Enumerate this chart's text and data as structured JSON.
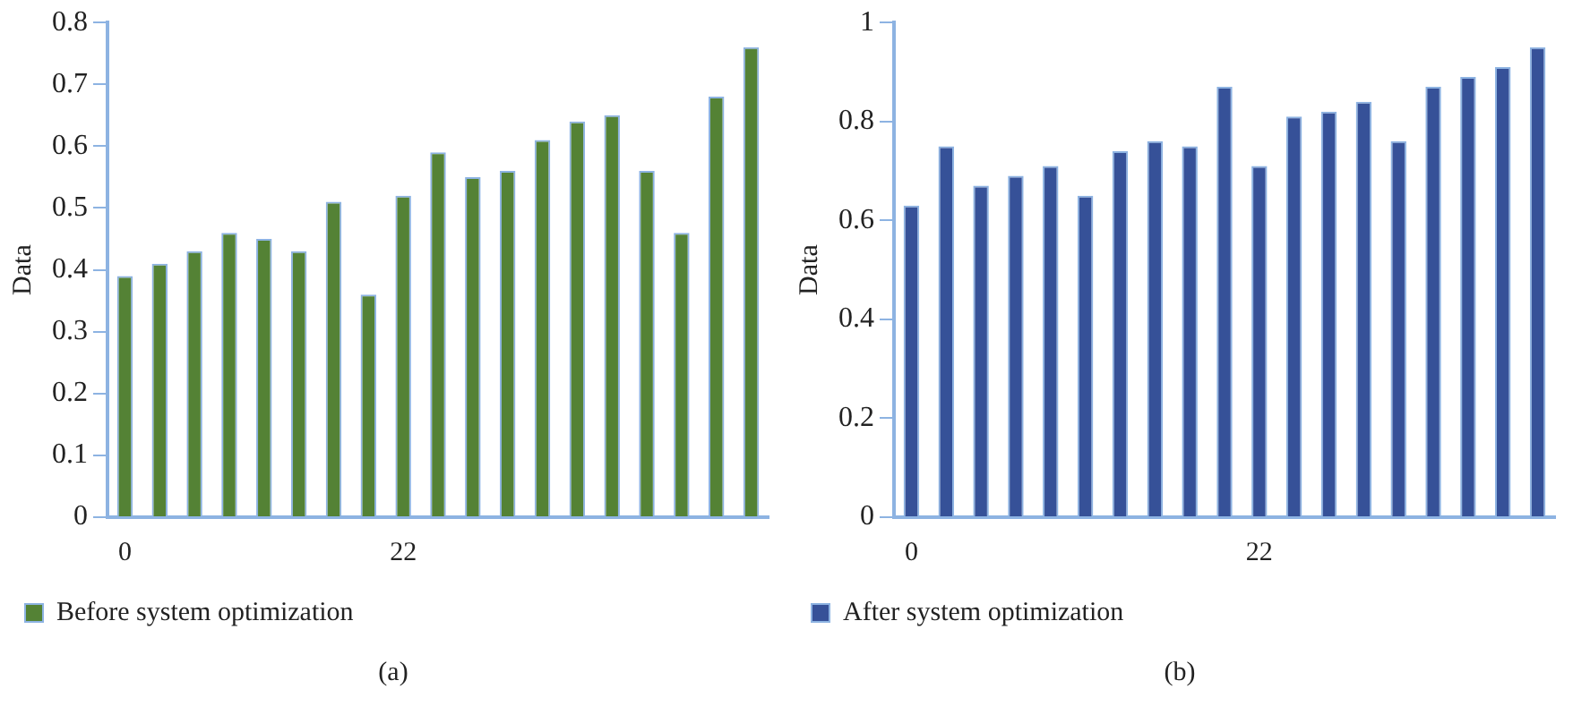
{
  "chart_data": [
    {
      "type": "bar",
      "ylabel": "Data",
      "categories": [
        "0",
        null,
        null,
        null,
        null,
        null,
        null,
        null,
        "22",
        null,
        null,
        null,
        null,
        null,
        null,
        null,
        null,
        null,
        null
      ],
      "series": [
        {
          "name": "Before system optimization",
          "color": "#548235",
          "values": [
            0.39,
            0.41,
            0.43,
            0.46,
            0.45,
            0.43,
            0.51,
            0.36,
            0.52,
            0.59,
            0.55,
            0.56,
            0.61,
            0.64,
            0.65,
            0.56,
            0.46,
            0.68,
            0.76
          ]
        }
      ],
      "ylim": [
        0,
        0.8
      ],
      "yticks": [
        0,
        0.1,
        0.2,
        0.3,
        0.4,
        0.5,
        0.6,
        0.7,
        0.8
      ],
      "grid": false,
      "legend": "bottom",
      "annotations": [
        "(a)"
      ]
    },
    {
      "type": "bar",
      "ylabel": "Data",
      "categories": [
        "0",
        null,
        null,
        null,
        null,
        null,
        null,
        null,
        null,
        null,
        "22",
        null,
        null,
        null,
        null,
        null,
        null,
        null,
        null
      ],
      "series": [
        {
          "name": "After system optimization",
          "color": "#365198",
          "values": [
            0.63,
            0.75,
            0.67,
            0.69,
            0.71,
            0.65,
            0.74,
            0.76,
            0.75,
            0.87,
            0.71,
            0.81,
            0.82,
            0.84,
            0.76,
            0.87,
            0.89,
            0.91,
            0.95
          ]
        }
      ],
      "ylim": [
        0,
        1
      ],
      "yticks": [
        0,
        0.2,
        0.4,
        0.6,
        0.8,
        1
      ],
      "grid": false,
      "legend": "bottom",
      "annotations": [
        "(b)"
      ]
    }
  ]
}
